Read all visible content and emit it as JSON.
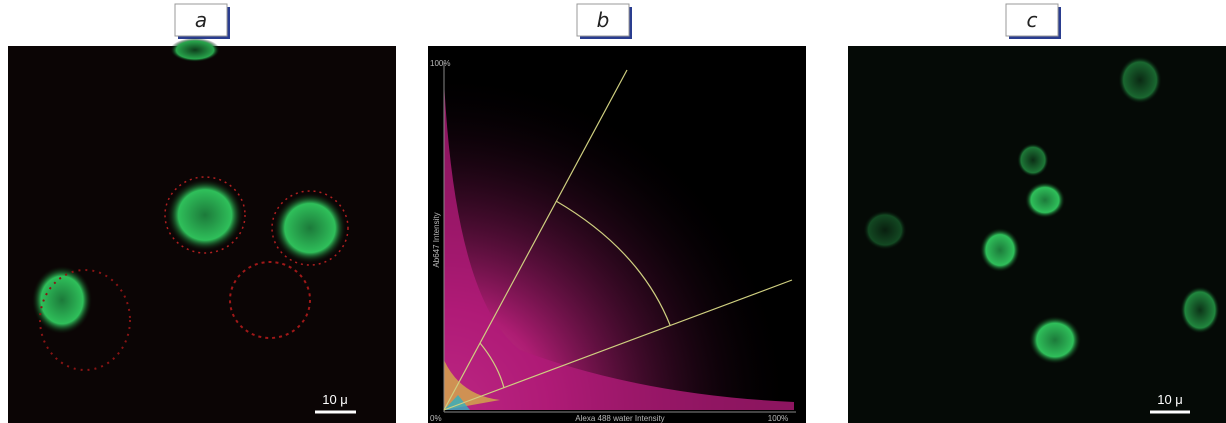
{
  "panels": [
    {
      "label": "a",
      "scale_bar": "10 μ"
    },
    {
      "label": "b",
      "y_max_label": "100%",
      "origin_label": "0%",
      "x_axis_label": "Alexa 488 water Intensity",
      "x_max_label": "100%",
      "y_axis_label": "Ab647 Intensity"
    },
    {
      "label": "c",
      "scale_bar": "10 μ"
    }
  ]
}
